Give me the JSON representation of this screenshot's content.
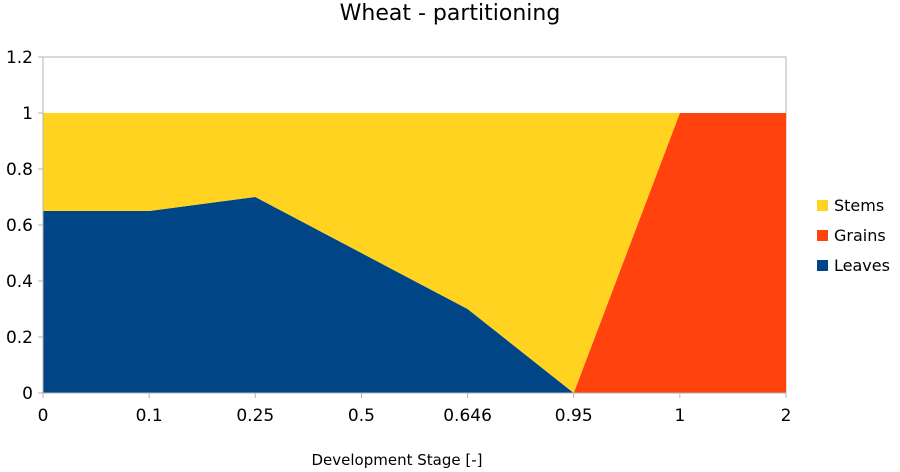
{
  "chart_data": {
    "type": "area",
    "stacked": true,
    "title": "Wheat - partitioning",
    "xlabel": "Development Stage [-]",
    "ylabel": "",
    "categories": [
      "0",
      "0.1",
      "0.25",
      "0.5",
      "0.646",
      "0.95",
      "1",
      "2"
    ],
    "ylim": [
      0,
      1.2
    ],
    "yticks": [
      "0",
      "0.2",
      "0.4",
      "0.6",
      "0.8",
      "1",
      "1.2"
    ],
    "grid": false,
    "legend_position": "right",
    "series": [
      {
        "name": "Leaves",
        "color": "#004586",
        "values": [
          0.65,
          0.65,
          0.7,
          0.5,
          0.3,
          0.0,
          0.0,
          0.0
        ]
      },
      {
        "name": "Grains",
        "color": "#ff420e",
        "values": [
          0.0,
          0.0,
          0.0,
          0.0,
          0.0,
          0.0,
          1.0,
          1.0
        ]
      },
      {
        "name": "Stems",
        "color": "#ffd320",
        "values": [
          0.35,
          0.35,
          0.3,
          0.5,
          0.7,
          1.0,
          0.0,
          0.0
        ]
      }
    ],
    "legend_order": [
      "Stems",
      "Grains",
      "Leaves"
    ]
  }
}
